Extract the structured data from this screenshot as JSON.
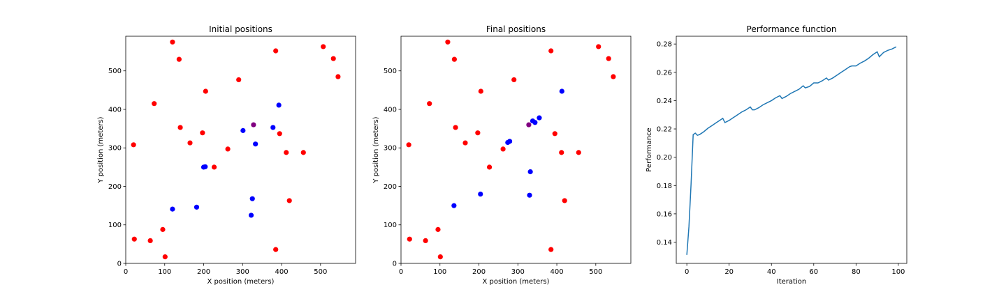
{
  "chart_data": [
    {
      "type": "scatter",
      "title": "Initial positions",
      "xlabel": "X position (meters)",
      "ylabel": "Y position (meters)",
      "xlim": [
        0,
        590
      ],
      "ylim": [
        0,
        590
      ],
      "xticks": [
        0,
        100,
        200,
        300,
        400,
        500
      ],
      "yticks": [
        0,
        100,
        200,
        300,
        400,
        500
      ],
      "grid": false,
      "series": [
        {
          "color": "#ff0000",
          "points": [
            [
              120,
              575
            ],
            [
              137,
              530
            ],
            [
              73,
              415
            ],
            [
              205,
              447
            ],
            [
              290,
              477
            ],
            [
              385,
              552
            ],
            [
              507,
              563
            ],
            [
              533,
              532
            ],
            [
              545,
              485
            ],
            [
              20,
              308
            ],
            [
              140,
              353
            ],
            [
              165,
              313
            ],
            [
              197,
              339
            ],
            [
              262,
              297
            ],
            [
              227,
              250
            ],
            [
              395,
              337
            ],
            [
              412,
              288
            ],
            [
              456,
              288
            ],
            [
              420,
              163
            ],
            [
              22,
              63
            ],
            [
              63,
              59
            ],
            [
              95,
              88
            ],
            [
              101,
              17
            ],
            [
              385,
              36
            ]
          ]
        },
        {
          "color": "#0000ff",
          "points": [
            [
              301,
              345
            ],
            [
              333,
              310
            ],
            [
              378,
              353
            ],
            [
              393,
              411
            ],
            [
              200,
              250
            ],
            [
              204,
              251
            ],
            [
              120,
              141
            ],
            [
              182,
              146
            ],
            [
              325,
              168
            ],
            [
              322,
              125
            ]
          ]
        },
        {
          "color": "#800080",
          "points": [
            [
              328,
              360
            ]
          ]
        }
      ]
    },
    {
      "type": "scatter",
      "title": "Final positions",
      "xlabel": "X position (meters)",
      "ylabel": "Y position (meters)",
      "xlim": [
        0,
        590
      ],
      "ylim": [
        0,
        590
      ],
      "xticks": [
        0,
        100,
        200,
        300,
        400,
        500
      ],
      "yticks": [
        0,
        100,
        200,
        300,
        400,
        500
      ],
      "grid": false,
      "series": [
        {
          "color": "#ff0000",
          "points": [
            [
              120,
              575
            ],
            [
              137,
              530
            ],
            [
              73,
              415
            ],
            [
              205,
              447
            ],
            [
              290,
              477
            ],
            [
              385,
              552
            ],
            [
              507,
              563
            ],
            [
              533,
              532
            ],
            [
              545,
              485
            ],
            [
              20,
              308
            ],
            [
              140,
              353
            ],
            [
              165,
              313
            ],
            [
              197,
              339
            ],
            [
              262,
              297
            ],
            [
              227,
              250
            ],
            [
              395,
              337
            ],
            [
              412,
              288
            ],
            [
              456,
              288
            ],
            [
              420,
              163
            ],
            [
              22,
              63
            ],
            [
              63,
              59
            ],
            [
              95,
              88
            ],
            [
              101,
              17
            ],
            [
              385,
              36
            ]
          ]
        },
        {
          "color": "#0000ff",
          "points": [
            [
              413,
              447
            ],
            [
              355,
              378
            ],
            [
              338,
              370
            ],
            [
              344,
              366
            ],
            [
              274,
              314
            ],
            [
              279,
              317
            ],
            [
              332,
              238
            ],
            [
              204,
              180
            ],
            [
              136,
              150
            ],
            [
              330,
              177
            ]
          ]
        },
        {
          "color": "#800080",
          "points": [
            [
              328,
              360
            ]
          ]
        }
      ]
    },
    {
      "type": "line",
      "title": "Performance function",
      "xlabel": "Iteration",
      "ylabel": "Performance",
      "xlim": [
        -5,
        104
      ],
      "ylim": [
        0.125,
        0.2855
      ],
      "xticks": [
        0,
        20,
        40,
        60,
        80,
        100
      ],
      "yticks": [
        0.14,
        0.16,
        0.18,
        0.2,
        0.22,
        0.24,
        0.26,
        0.28
      ],
      "grid": false,
      "series": [
        {
          "color": "#1f77b4",
          "points": [
            [
              0,
              0.131
            ],
            [
              1,
              0.151
            ],
            [
              2,
              0.181
            ],
            [
              3,
              0.216
            ],
            [
              4,
              0.217
            ],
            [
              5,
              0.2155
            ],
            [
              6,
              0.216
            ],
            [
              8,
              0.218
            ],
            [
              10,
              0.2205
            ],
            [
              12,
              0.2225
            ],
            [
              14,
              0.2245
            ],
            [
              16,
              0.2265
            ],
            [
              17,
              0.2275
            ],
            [
              18,
              0.2245
            ],
            [
              20,
              0.226
            ],
            [
              22,
              0.228
            ],
            [
              24,
              0.23
            ],
            [
              26,
              0.232
            ],
            [
              28,
              0.2335
            ],
            [
              30,
              0.2355
            ],
            [
              31,
              0.2335
            ],
            [
              32,
              0.2335
            ],
            [
              34,
              0.235
            ],
            [
              36,
              0.237
            ],
            [
              38,
              0.2385
            ],
            [
              40,
              0.24
            ],
            [
              42,
              0.242
            ],
            [
              44,
              0.2435
            ],
            [
              45,
              0.2415
            ],
            [
              47,
              0.243
            ],
            [
              49,
              0.245
            ],
            [
              51,
              0.2465
            ],
            [
              53,
              0.248
            ],
            [
              55,
              0.2505
            ],
            [
              56,
              0.249
            ],
            [
              58,
              0.25
            ],
            [
              60,
              0.2525
            ],
            [
              62,
              0.2525
            ],
            [
              64,
              0.254
            ],
            [
              66,
              0.256
            ],
            [
              67,
              0.2545
            ],
            [
              69,
              0.256
            ],
            [
              71,
              0.258
            ],
            [
              73,
              0.26
            ],
            [
              75,
              0.262
            ],
            [
              77,
              0.264
            ],
            [
              78,
              0.2645
            ],
            [
              80,
              0.2645
            ],
            [
              82,
              0.2665
            ],
            [
              84,
              0.268
            ],
            [
              86,
              0.27
            ],
            [
              88,
              0.2725
            ],
            [
              90,
              0.2745
            ],
            [
              91,
              0.271
            ],
            [
              93,
              0.274
            ],
            [
              95,
              0.2755
            ],
            [
              97,
              0.2765
            ],
            [
              99,
              0.278
            ]
          ]
        }
      ]
    }
  ]
}
